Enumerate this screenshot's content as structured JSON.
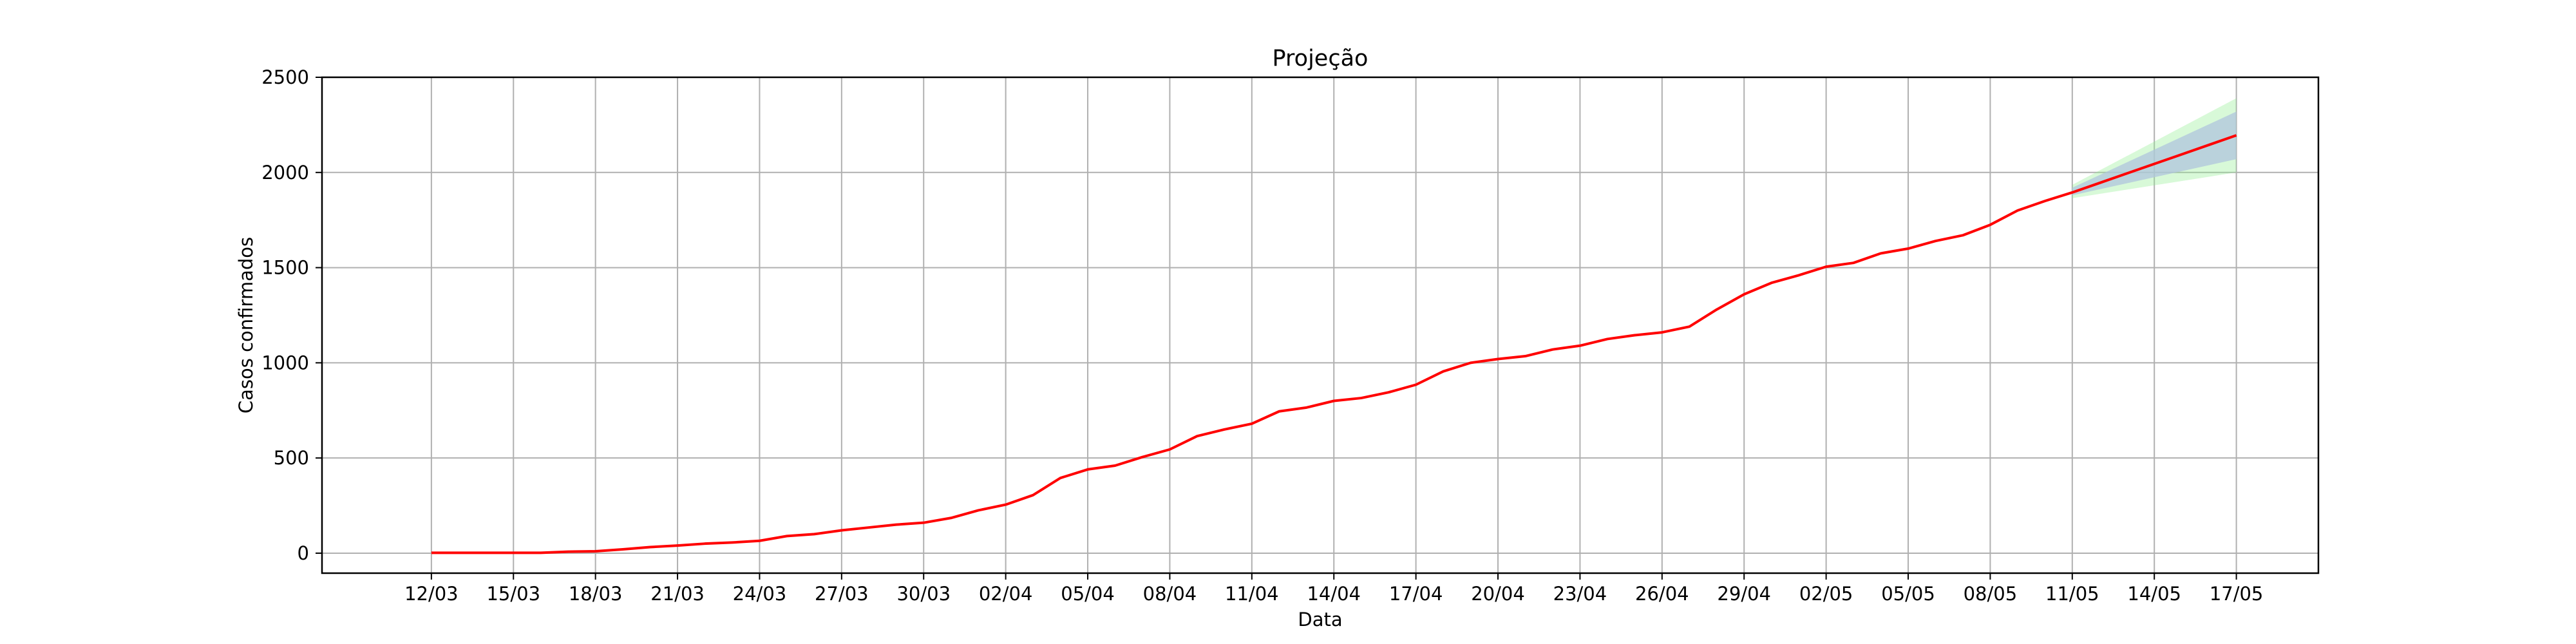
{
  "chart_data": {
    "type": "line",
    "title": "Projeção",
    "xlabel": "Data",
    "ylabel": "Casos confirmados",
    "ylim": [
      -105,
      2500
    ],
    "yticks": [
      0,
      500,
      1000,
      1500,
      2000,
      2500
    ],
    "xlim": [
      -4,
      69
    ],
    "x_ticks": [
      {
        "day": 0,
        "label": "12/03"
      },
      {
        "day": 3,
        "label": "15/03"
      },
      {
        "day": 6,
        "label": "18/03"
      },
      {
        "day": 9,
        "label": "21/03"
      },
      {
        "day": 12,
        "label": "24/03"
      },
      {
        "day": 15,
        "label": "27/03"
      },
      {
        "day": 18,
        "label": "30/03"
      },
      {
        "day": 21,
        "label": "02/04"
      },
      {
        "day": 24,
        "label": "05/04"
      },
      {
        "day": 27,
        "label": "08/04"
      },
      {
        "day": 30,
        "label": "11/04"
      },
      {
        "day": 33,
        "label": "14/04"
      },
      {
        "day": 36,
        "label": "17/04"
      },
      {
        "day": 39,
        "label": "20/04"
      },
      {
        "day": 42,
        "label": "23/04"
      },
      {
        "day": 45,
        "label": "26/04"
      },
      {
        "day": 48,
        "label": "29/04"
      },
      {
        "day": 51,
        "label": "02/05"
      },
      {
        "day": 54,
        "label": "05/05"
      },
      {
        "day": 57,
        "label": "08/05"
      },
      {
        "day": 60,
        "label": "11/05"
      },
      {
        "day": 63,
        "label": "14/05"
      },
      {
        "day": 66,
        "label": "17/05"
      }
    ],
    "series": [
      {
        "name": "Casos confirmados",
        "color": "#ff0000",
        "x": [
          0,
          1,
          2,
          3,
          4,
          5,
          6,
          7,
          8,
          9,
          10,
          11,
          12,
          13,
          14,
          15,
          16,
          17,
          18,
          19,
          20,
          21,
          22,
          23,
          24,
          25,
          26,
          27,
          28,
          29,
          30,
          31,
          32,
          33,
          34,
          35,
          36,
          37,
          38,
          39,
          40,
          41,
          42,
          43,
          44,
          45,
          46,
          47,
          48,
          49,
          50,
          51,
          52,
          53,
          54,
          55,
          56,
          57,
          58,
          59,
          60,
          61,
          62,
          63,
          64,
          65,
          66
        ],
        "values": [
          2,
          2,
          2,
          2,
          2,
          8,
          10,
          20,
          32,
          40,
          50,
          56,
          65,
          90,
          100,
          120,
          135,
          150,
          160,
          185,
          225,
          255,
          305,
          395,
          440,
          460,
          505,
          545,
          615,
          650,
          680,
          745,
          765,
          800,
          815,
          845,
          885,
          955,
          1000,
          1020,
          1035,
          1070,
          1090,
          1125,
          1145,
          1160,
          1190,
          1280,
          1360,
          1420,
          1460,
          1505,
          1525,
          1575,
          1600,
          1640,
          1670,
          1725,
          1800,
          1850,
          1895,
          1945,
          1995,
          2045,
          2095,
          2145,
          2195
        ]
      }
    ],
    "projection": {
      "x": [
        60,
        66
      ],
      "center": [
        1895,
        2195
      ],
      "band_inner_upper": [
        1920,
        2320
      ],
      "band_inner_lower": [
        1880,
        2070
      ],
      "band_outer_upper": [
        1935,
        2390
      ],
      "band_outer_lower": [
        1865,
        2000
      ],
      "inner_color": "#b0c4de",
      "outer_color": "#90ee90"
    }
  }
}
